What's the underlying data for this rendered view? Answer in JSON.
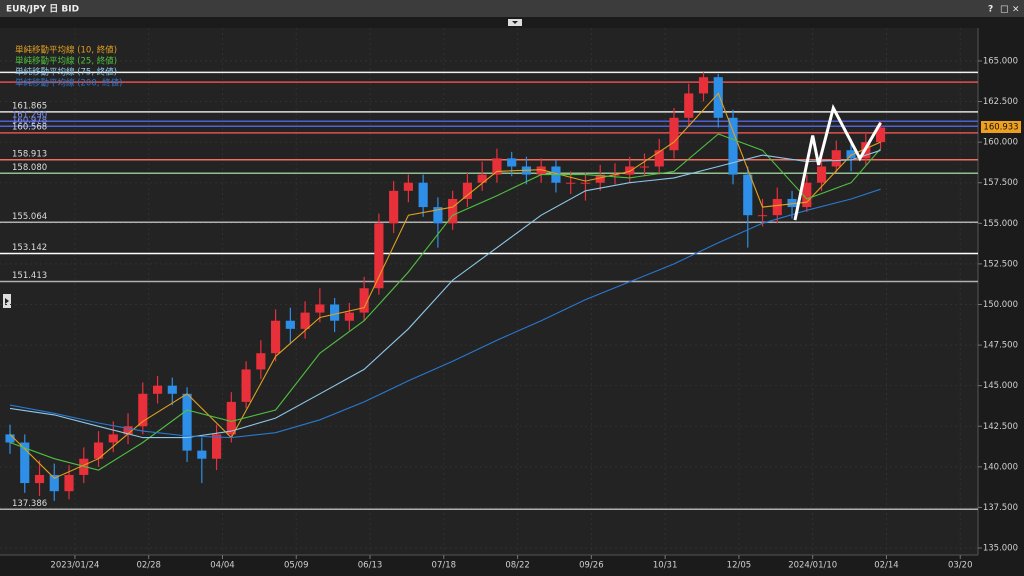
{
  "window_title": "EUR/JPY 日 BID",
  "window_buttons": [
    "?",
    "□",
    "×"
  ],
  "chart_data": {
    "type": "candlestick",
    "x": [
      0,
      5,
      10,
      15,
      20,
      25,
      30,
      35,
      40,
      45,
      50,
      55,
      60,
      65,
      70,
      75,
      80,
      85,
      90,
      95,
      100,
      105,
      110,
      115,
      120,
      125,
      130,
      135,
      140,
      145,
      150,
      155,
      160,
      165,
      170,
      175,
      180,
      185,
      190,
      195,
      200,
      205,
      210,
      215,
      220,
      225,
      230,
      235,
      240,
      245,
      250,
      255,
      260,
      265,
      270,
      275,
      280,
      285,
      290,
      295
    ],
    "ohlc": [
      [
        142.0,
        142.6,
        140.8,
        141.5
      ],
      [
        141.5,
        142.0,
        138.4,
        139.0
      ],
      [
        139.0,
        140.4,
        138.2,
        139.5
      ],
      [
        139.5,
        140.2,
        137.9,
        138.5
      ],
      [
        138.5,
        140.1,
        138.0,
        139.5
      ],
      [
        139.5,
        141.2,
        139.0,
        140.5
      ],
      [
        140.5,
        142.2,
        140.0,
        141.5
      ],
      [
        141.5,
        142.8,
        140.9,
        142.0
      ],
      [
        142.0,
        143.3,
        141.4,
        142.5
      ],
      [
        142.5,
        145.2,
        142.0,
        144.5
      ],
      [
        144.5,
        145.6,
        143.9,
        145.0
      ],
      [
        145.0,
        145.5,
        143.8,
        144.5
      ],
      [
        144.5,
        144.9,
        140.3,
        141.0
      ],
      [
        141.0,
        141.8,
        139.0,
        140.5
      ],
      [
        140.5,
        142.6,
        139.8,
        142.0
      ],
      [
        142.0,
        144.6,
        141.5,
        144.0
      ],
      [
        144.0,
        146.5,
        143.6,
        146.0
      ],
      [
        146.0,
        147.8,
        145.4,
        147.0
      ],
      [
        147.0,
        149.7,
        146.5,
        149.0
      ],
      [
        149.0,
        149.8,
        147.6,
        148.5
      ],
      [
        148.5,
        150.2,
        147.9,
        149.5
      ],
      [
        149.5,
        151.0,
        148.9,
        150.0
      ],
      [
        150.0,
        150.4,
        148.3,
        149.0
      ],
      [
        149.0,
        150.1,
        148.4,
        149.5
      ],
      [
        149.5,
        151.7,
        149.0,
        151.0
      ],
      [
        151.0,
        155.6,
        150.6,
        155.0
      ],
      [
        155.0,
        157.6,
        154.4,
        157.0
      ],
      [
        157.0,
        158.0,
        156.3,
        157.5
      ],
      [
        157.5,
        158.0,
        155.4,
        156.0
      ],
      [
        156.0,
        156.6,
        153.5,
        155.0
      ],
      [
        155.0,
        157.0,
        154.6,
        156.5
      ],
      [
        156.5,
        158.1,
        156.0,
        157.5
      ],
      [
        157.5,
        158.8,
        157.0,
        158.0
      ],
      [
        158.0,
        159.6,
        157.5,
        159.0
      ],
      [
        159.0,
        159.4,
        157.9,
        158.5
      ],
      [
        158.5,
        159.1,
        157.4,
        158.0
      ],
      [
        158.0,
        159.0,
        157.5,
        158.5
      ],
      [
        158.5,
        158.9,
        156.9,
        157.5
      ],
      [
        157.5,
        158.2,
        156.8,
        157.5
      ],
      [
        157.5,
        158.1,
        156.4,
        157.5
      ],
      [
        157.5,
        158.6,
        157.0,
        158.0
      ],
      [
        158.0,
        158.7,
        157.4,
        158.0
      ],
      [
        158.0,
        159.1,
        157.5,
        158.5
      ],
      [
        158.5,
        159.3,
        157.9,
        158.5
      ],
      [
        158.5,
        160.2,
        158.0,
        159.5
      ],
      [
        159.5,
        162.1,
        159.0,
        161.5
      ],
      [
        161.5,
        163.6,
        161.0,
        163.0
      ],
      [
        163.0,
        164.3,
        162.5,
        164.0
      ],
      [
        164.0,
        164.2,
        160.9,
        161.5
      ],
      [
        161.5,
        162.0,
        157.4,
        158.0
      ],
      [
        158.0,
        158.5,
        153.5,
        155.5
      ],
      [
        155.5,
        156.5,
        154.8,
        155.5
      ],
      [
        155.5,
        157.2,
        155.0,
        156.5
      ],
      [
        156.5,
        157.0,
        155.3,
        156.0
      ],
      [
        156.0,
        158.0,
        155.7,
        157.5
      ],
      [
        157.5,
        159.1,
        157.0,
        158.5
      ],
      [
        158.5,
        160.1,
        158.1,
        159.5
      ],
      [
        159.5,
        160.2,
        158.2,
        159.0
      ],
      [
        159.0,
        160.5,
        158.6,
        160.0
      ],
      [
        160.0,
        161.3,
        159.6,
        160.9
      ]
    ],
    "up_color": "#e8303a",
    "down_color": "#2e8fe8",
    "xlim": [
      0,
      327
    ],
    "xticks": [
      {
        "value": 22,
        "label": "2023/01/24"
      },
      {
        "value": 47,
        "label": "02/28"
      },
      {
        "value": 72,
        "label": "04/04"
      },
      {
        "value": 97,
        "label": "05/09"
      },
      {
        "value": 122,
        "label": "06/13"
      },
      {
        "value": 147,
        "label": "07/18"
      },
      {
        "value": 172,
        "label": "08/22"
      },
      {
        "value": 197,
        "label": "09/26"
      },
      {
        "value": 222,
        "label": "10/31"
      },
      {
        "value": 247,
        "label": "12/05"
      },
      {
        "value": 272,
        "label": "2024/01/10"
      },
      {
        "value": 297,
        "label": "02/14"
      },
      {
        "value": 322,
        "label": "03/20"
      }
    ],
    "ylim": [
      134.57,
      167.03
    ],
    "yticks": [
      {
        "value": 135,
        "label": "135.000"
      },
      {
        "value": 137.5,
        "label": "137.500"
      },
      {
        "value": 140,
        "label": "140.000"
      },
      {
        "value": 142.5,
        "label": "142.500"
      },
      {
        "value": 145,
        "label": "145.000"
      },
      {
        "value": 147.5,
        "label": "147.500"
      },
      {
        "value": 150,
        "label": "150.000"
      },
      {
        "value": 152.5,
        "label": "152.500"
      },
      {
        "value": 155,
        "label": "155.000"
      },
      {
        "value": 157.5,
        "label": "157.500"
      },
      {
        "value": 160,
        "label": "160.000"
      },
      {
        "value": 162.5,
        "label": "162.500"
      },
      {
        "value": 165,
        "label": "165.000"
      }
    ],
    "grid": true,
    "series": [
      {
        "name": "単純移動平均線 (10, 終値)",
        "color": "#e0a020",
        "x": [
          0,
          15,
          30,
          45,
          60,
          75,
          90,
          105,
          120,
          135,
          150,
          165,
          180,
          195,
          210,
          225,
          240,
          255,
          270,
          285,
          295
        ],
        "values": [
          142.0,
          139.3,
          140.5,
          142.8,
          144.5,
          141.8,
          146.8,
          149.2,
          149.8,
          155.5,
          156.0,
          158.2,
          158.3,
          157.6,
          158.2,
          160.0,
          163.0,
          156.0,
          156.3,
          159.2,
          160.0
        ]
      },
      {
        "name": "単純移動平均線 (25, 終値)",
        "color": "#50c040",
        "x": [
          0,
          15,
          30,
          45,
          60,
          75,
          90,
          105,
          120,
          135,
          150,
          165,
          180,
          195,
          210,
          225,
          240,
          255,
          270,
          285,
          295
        ],
        "values": [
          141.5,
          140.5,
          139.8,
          141.5,
          143.5,
          142.8,
          143.5,
          147.0,
          149.0,
          152.0,
          155.5,
          156.7,
          158.0,
          158.0,
          157.8,
          158.2,
          160.5,
          159.5,
          156.5,
          157.5,
          159.6
        ]
      },
      {
        "name": "単純移動平均線 (75, 終値)",
        "color": "#8ec8e8",
        "x": [
          0,
          15,
          30,
          45,
          60,
          75,
          90,
          105,
          120,
          135,
          150,
          165,
          180,
          195,
          210,
          225,
          240,
          255,
          270,
          285,
          295
        ],
        "values": [
          143.6,
          143.2,
          142.5,
          141.8,
          141.8,
          142.2,
          143.0,
          144.5,
          146.0,
          148.5,
          151.5,
          153.5,
          155.5,
          157.0,
          157.5,
          157.8,
          158.5,
          159.2,
          158.8,
          158.9,
          159.5
        ]
      },
      {
        "name": "単純移動平均線 (200, 終値)",
        "color": "#2a78d0",
        "x": [
          0,
          15,
          30,
          45,
          60,
          75,
          90,
          105,
          120,
          135,
          150,
          165,
          180,
          195,
          210,
          225,
          240,
          255,
          270,
          285,
          295
        ],
        "values": [
          143.8,
          143.3,
          142.7,
          142.2,
          141.9,
          141.8,
          142.1,
          142.9,
          144.0,
          145.3,
          146.5,
          147.8,
          149.0,
          150.3,
          151.4,
          152.5,
          153.8,
          155.0,
          155.8,
          156.5,
          157.1
        ]
      }
    ],
    "levels": [
      {
        "value": 164.3,
        "color": "#f0f0f0"
      },
      {
        "value": 163.7,
        "color": "#e05050"
      },
      {
        "value": 161.865,
        "label": "161.865",
        "color": "#e0e0e0"
      },
      {
        "value": 161.29,
        "label": "161.290",
        "color": "#5060d0"
      },
      {
        "value": 160.978,
        "label": "160.978",
        "color": "#5060d0"
      },
      {
        "value": 160.568,
        "label": "160.568",
        "color": "#e05050"
      },
      {
        "value": 158.913,
        "label": "158.913",
        "color": "#f07060"
      },
      {
        "value": 158.08,
        "label": "158.080",
        "color": "#90c090"
      },
      {
        "value": 155.064,
        "label": "155.064",
        "color": "#b0b0b0"
      },
      {
        "value": 153.142,
        "label": "153.142",
        "color": "#ffffff"
      },
      {
        "value": 151.413,
        "label": "151.413",
        "color": "#b0b0b0"
      },
      {
        "value": 137.386,
        "label": "137.386",
        "color": "#b0b0b0"
      }
    ],
    "last_price": 160.933,
    "annotation": {
      "color": "#ffffff",
      "x": [
        266,
        272,
        274,
        279,
        288,
        295
      ],
      "values": [
        155.2,
        160.4,
        158.6,
        162.1,
        159.0,
        161.2
      ]
    }
  }
}
